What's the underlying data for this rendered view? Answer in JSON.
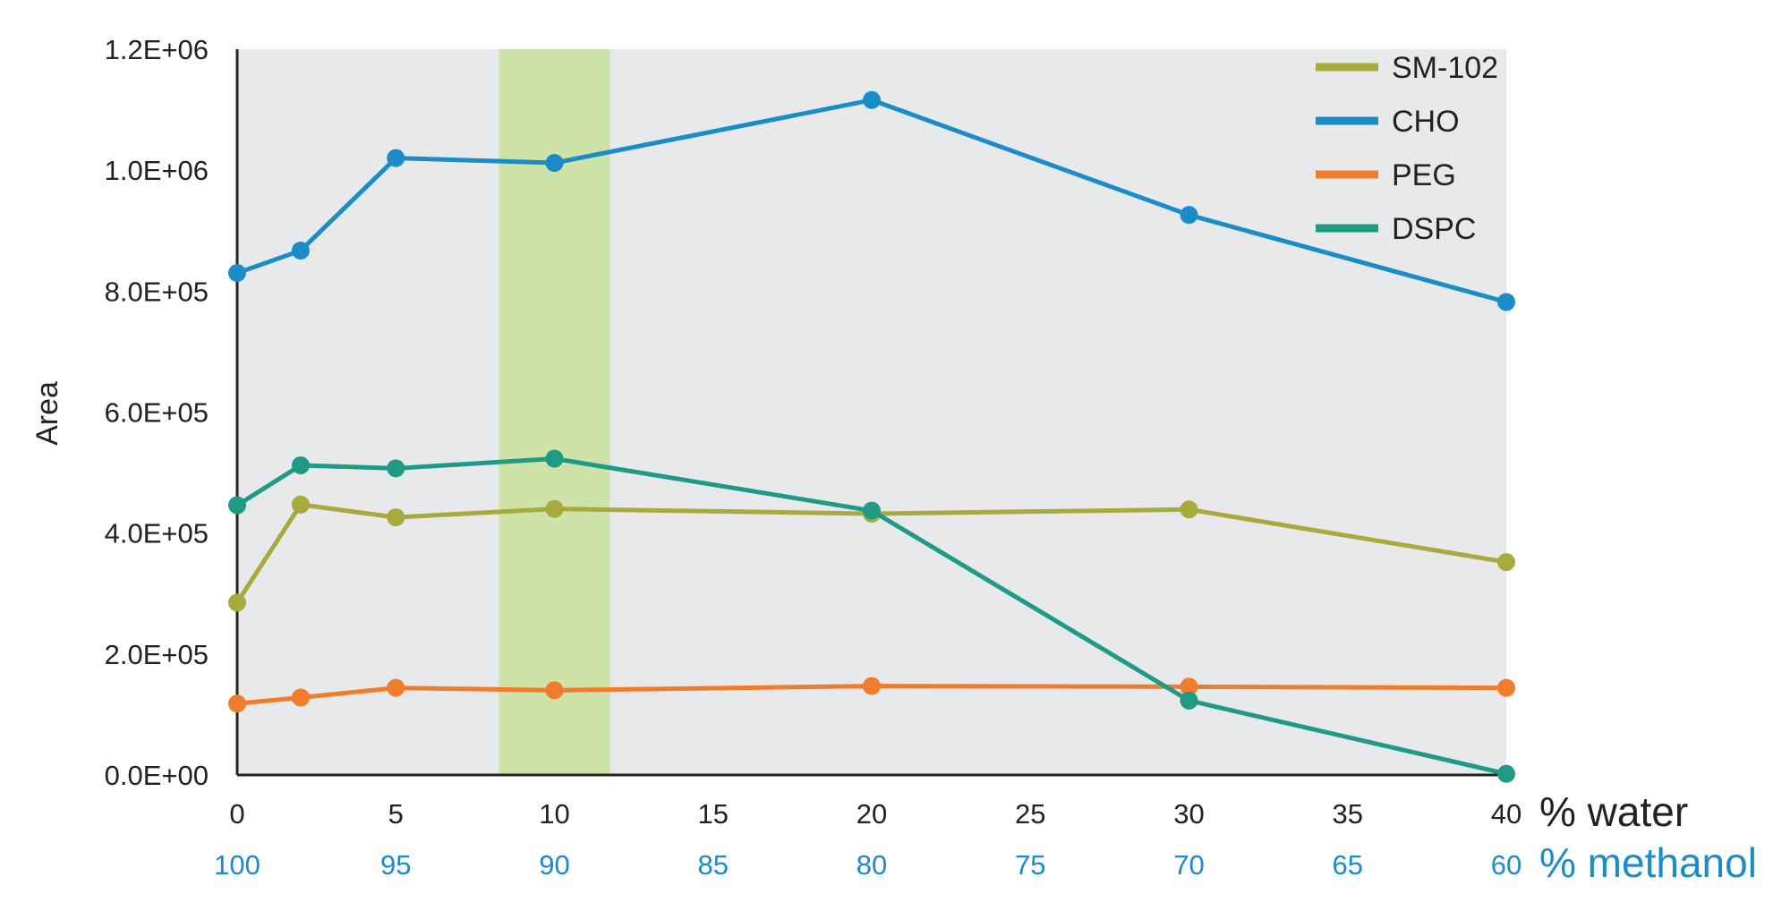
{
  "chart_data": {
    "type": "line",
    "ylabel": "Area",
    "ylim": [
      0,
      1200000
    ],
    "y_ticks": [
      "0.0E+00",
      "2.0E+05",
      "4.0E+05",
      "6.0E+05",
      "8.0E+05",
      "1.0E+06",
      "1.2E+06"
    ],
    "xlim": [
      0,
      40
    ],
    "x_ticks": [
      "0",
      "5",
      "10",
      "15",
      "20",
      "25",
      "30",
      "35",
      "40"
    ],
    "x_ticks_secondary": [
      "100",
      "95",
      "90",
      "85",
      "80",
      "75",
      "70",
      "65",
      "60"
    ],
    "x_unit_primary": "% water",
    "x_unit_secondary": "% methanol",
    "highlight_range": [
      8.25,
      11.75
    ],
    "grid": false,
    "legend_position": "top-right",
    "x": [
      0,
      2,
      5,
      10,
      20,
      30,
      40
    ],
    "series": [
      {
        "name": "SM-102",
        "color": "#a8aa3c",
        "values": [
          285000,
          447000,
          426000,
          440000,
          432000,
          439000,
          352000
        ]
      },
      {
        "name": "CHO",
        "color": "#1a8cc8",
        "values": [
          830000,
          867000,
          1020000,
          1012000,
          1116000,
          926000,
          782000
        ]
      },
      {
        "name": "PEG",
        "color": "#ef7d2c",
        "values": [
          118000,
          128000,
          144000,
          140000,
          147000,
          146000,
          144000
        ]
      },
      {
        "name": "DSPC",
        "color": "#1f9a85",
        "values": [
          446000,
          512000,
          507000,
          523000,
          437000,
          123000,
          2000
        ]
      }
    ]
  },
  "colors": {
    "plot_background": "#e8e9ea",
    "highlight": "#cde3a8",
    "secondary_axis": "#1a8cc8",
    "axis": "#222222"
  }
}
